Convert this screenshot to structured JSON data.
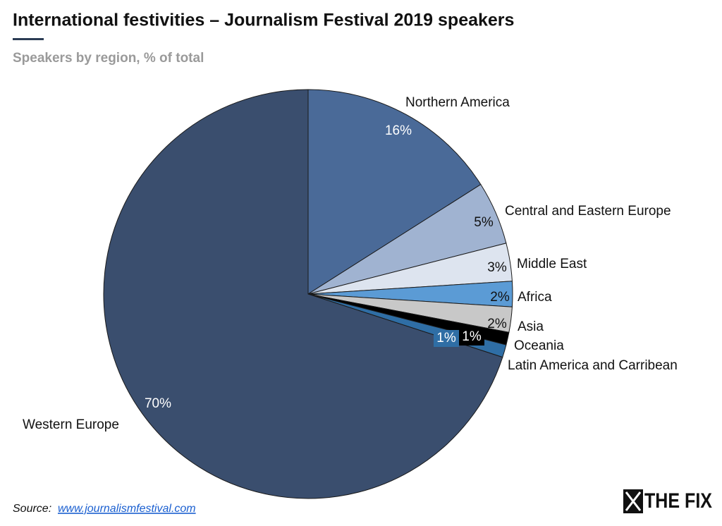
{
  "chart_data": {
    "type": "pie",
    "title": "International festivities – Journalism Festival 2019 speakers",
    "subtitle": "Speakers by region, % of total",
    "categories": [
      "Northern America",
      "Central and Eastern Europe",
      "Middle East",
      "Africa",
      "Asia",
      "Oceania",
      "Latin America and Carribean",
      "Western Europe"
    ],
    "values": [
      16,
      5,
      3,
      2,
      2,
      1,
      1,
      70
    ],
    "value_labels": [
      "16%",
      "5%",
      "3%",
      "2%",
      "2%",
      "1%",
      "1%",
      "70%"
    ],
    "colors": [
      "#4a6a98",
      "#a0b3d1",
      "#dde4ef",
      "#5b9bd5",
      "#c8c8c8",
      "#000000",
      "#2f6ea5",
      "#3a4e6e"
    ],
    "source": {
      "label": "Source:",
      "url": "www.journalismfestival.com"
    },
    "logo": "THE FIX"
  }
}
